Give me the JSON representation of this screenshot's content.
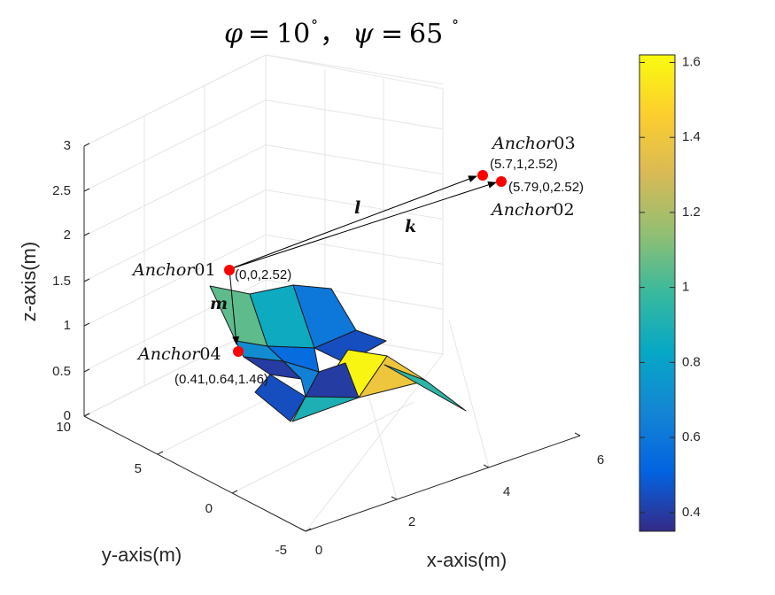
{
  "chart_data": {
    "type": "surface",
    "title_parts": {
      "phi_sym": "φ",
      "eq": "=",
      "phi_val": "10",
      "deg": "°",
      "sep": "，",
      "psi_sym": "ψ",
      "psi_val": "65"
    },
    "xlabel": "x-axis(m)",
    "ylabel": "y-axis(m)",
    "zlabel": "z-axis(m)",
    "x_ticks": [
      "0",
      "2",
      "4",
      "6"
    ],
    "y_ticks": [
      "-5",
      "0",
      "5",
      "10"
    ],
    "z_ticks": [
      "0",
      "0.5",
      "1",
      "1.5",
      "2",
      "2.5",
      "3"
    ],
    "xlim": [
      0,
      6
    ],
    "ylim": [
      -5,
      10
    ],
    "zlim": [
      0,
      3
    ],
    "grid": true,
    "colormap": "parula",
    "colorbar": {
      "ticks": [
        "0.4",
        "0.6",
        "0.8",
        "1",
        "1.2",
        "1.4",
        "1.6"
      ],
      "range": [
        0.35,
        1.62
      ],
      "colors": [
        "#352a87",
        "#0363e1",
        "#1485d4",
        "#06a7c6",
        "#38b99e",
        "#92bf73",
        "#d9ba56",
        "#fcce2e",
        "#f9fb0e"
      ]
    },
    "anchors": [
      {
        "name": "Anchor",
        "num": "01",
        "coords": "(0,0,2.52)"
      },
      {
        "name": "Anchor",
        "num": "02",
        "coords": "(5.79,0,2.52)"
      },
      {
        "name": "Anchor",
        "num": "03",
        "coords": "(5.7,1,2.52)"
      },
      {
        "name": "Anchor",
        "num": "04",
        "coords": "(0.41,0.64,1.46)"
      }
    ],
    "vectors": [
      "l",
      "k",
      "m"
    ],
    "surface_face_values": [
      1.05,
      0.85,
      0.6,
      0.7,
      0.55,
      0.45,
      0.4,
      0.65,
      0.45,
      1.6,
      1.4,
      0.95,
      0.4,
      0.9
    ]
  }
}
